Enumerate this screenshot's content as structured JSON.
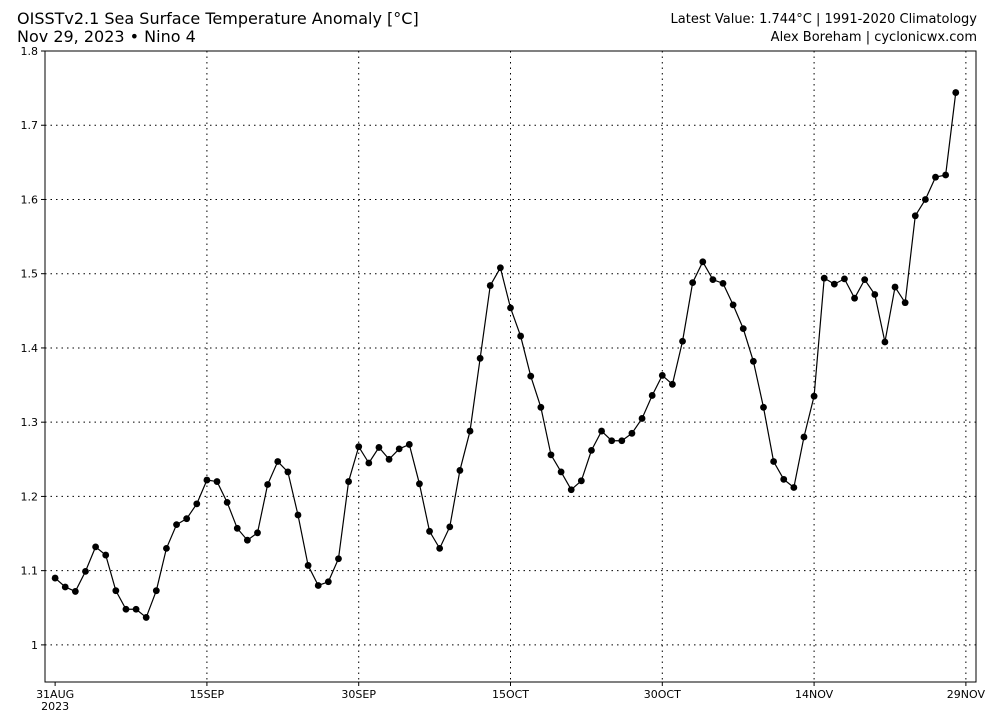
{
  "header": {
    "title_line1": "OISSTv2.1 Sea Surface Temperature Anomaly [°C]",
    "title_line2": "Nov 29, 2023 • Nino 4",
    "right_line1": "Latest Value: 1.744°C | 1991-2020 Climatology",
    "right_line2": "Alex Boreham | cyclonicwx.com"
  },
  "chart_data": {
    "type": "line",
    "title": "OISSTv2.1 Sea Surface Temperature Anomaly [°C]",
    "subtitle": "Nov 29, 2023 • Nino 4",
    "xlabel": "",
    "ylabel": "",
    "x_start": "2023-08-31",
    "x_end": "2023-11-29",
    "xlim": [
      "2023-08-30",
      "2023-11-30"
    ],
    "ylim": [
      0.95,
      1.8
    ],
    "yticks": [
      1,
      1.1,
      1.2,
      1.3,
      1.4,
      1.5,
      1.6,
      1.7,
      1.8
    ],
    "yticklabels": [
      "1",
      "1.1",
      "1.2",
      "1.3",
      "1.4",
      "1.5",
      "1.6",
      "1.7",
      "1.8"
    ],
    "xticks": [
      "2023-08-31",
      "2023-09-15",
      "2023-09-30",
      "2023-10-15",
      "2023-10-30",
      "2023-11-14",
      "2023-11-29"
    ],
    "xticklabels": [
      "31AUG",
      "15SEP",
      "30SEP",
      "15OCT",
      "30OCT",
      "14NOV",
      "29NOV"
    ],
    "xtick_year": "2023",
    "grid": "dotted",
    "line_color": "#000000",
    "marker": "circle",
    "values": [
      1.09,
      1.078,
      1.072,
      1.099,
      1.132,
      1.121,
      1.073,
      1.048,
      1.048,
      1.037,
      1.073,
      1.13,
      1.162,
      1.17,
      1.19,
      1.222,
      1.22,
      1.192,
      1.157,
      1.141,
      1.151,
      1.216,
      1.247,
      1.233,
      1.175,
      1.107,
      1.08,
      1.085,
      1.116,
      1.22,
      1.267,
      1.245,
      1.266,
      1.25,
      1.264,
      1.27,
      1.217,
      1.153,
      1.13,
      1.159,
      1.235,
      1.288,
      1.386,
      1.484,
      1.508,
      1.454,
      1.416,
      1.362,
      1.32,
      1.256,
      1.233,
      1.209,
      1.221,
      1.262,
      1.288,
      1.275,
      1.275,
      1.285,
      1.305,
      1.336,
      1.363,
      1.351,
      1.409,
      1.488,
      1.516,
      1.492,
      1.487,
      1.458,
      1.426,
      1.382,
      1.32,
      1.247,
      1.223,
      1.212,
      1.28,
      1.335,
      1.494,
      1.486,
      1.493,
      1.467,
      1.492,
      1.472,
      1.408,
      1.482,
      1.461,
      1.578,
      1.6,
      1.63,
      1.633,
      1.744
    ]
  }
}
